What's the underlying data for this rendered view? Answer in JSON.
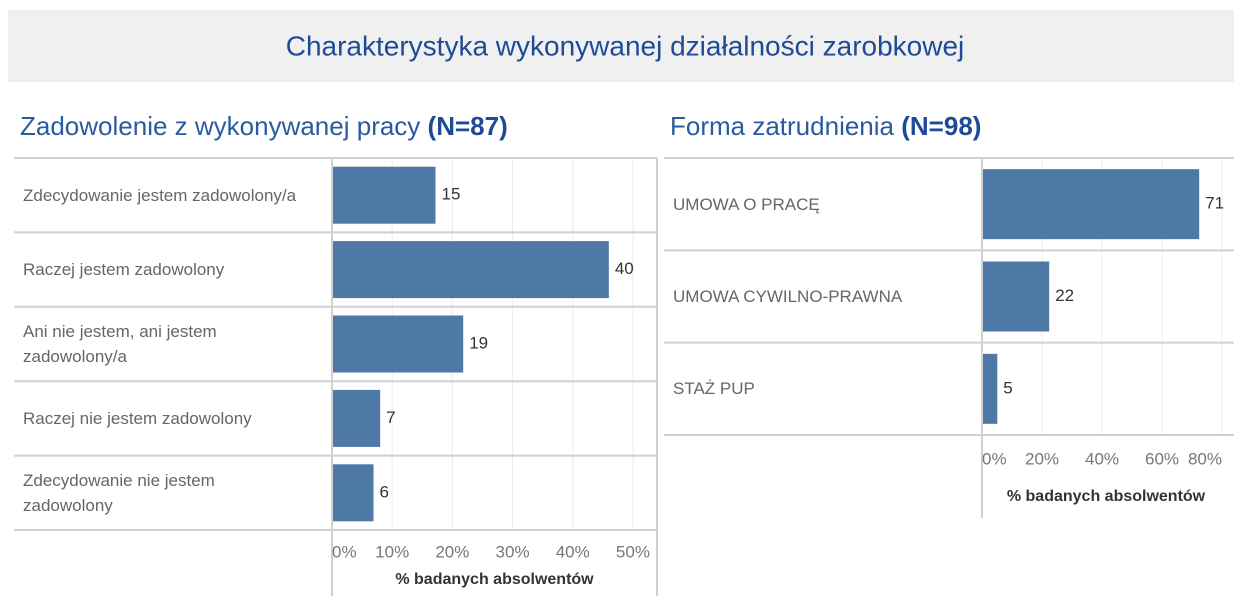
{
  "title": "Charakterystyka wykonywanej działalności zarobkowej",
  "chart_data": [
    {
      "type": "bar",
      "orientation": "horizontal",
      "title": "Zadowolenie z wykonywanej pracy",
      "subtitle": "(N=87)",
      "categories": [
        "Zdecydowanie jestem zadowolony/a",
        "Raczej jestem zadowolony",
        "Ani nie jestem, ani jestem zadowolony/a",
        "Raczej nie jestem zadowolony",
        "Zdecydowanie nie jestem zadowolony"
      ],
      "values": [
        17.2,
        46.0,
        21.8,
        8.0,
        6.9
      ],
      "counts": [
        15,
        40,
        19,
        7,
        6
      ],
      "color": "#4e79a7",
      "xlim": [
        0,
        54
      ],
      "xticks": [
        {
          "value": 0,
          "label": "0%"
        },
        {
          "value": 10,
          "label": "10%"
        },
        {
          "value": 20,
          "label": "20%"
        },
        {
          "value": 30,
          "label": "30%"
        },
        {
          "value": 40,
          "label": "40%"
        },
        {
          "value": 50,
          "label": "50%"
        }
      ],
      "x_label": "% badanych absolwentów",
      "grid": true
    },
    {
      "type": "bar",
      "orientation": "horizontal",
      "title": "Forma zatrudnienia",
      "subtitle": "(N=98)",
      "categories": [
        "UMOWA O PRACĘ",
        "UMOWA CYWILNO-PRAWNA",
        "STAŻ PUP"
      ],
      "values": [
        72.4,
        22.4,
        5.1
      ],
      "counts": [
        71,
        22,
        5
      ],
      "color": "#4e79a7",
      "xlim": [
        0,
        84
      ],
      "xticks": [
        {
          "value": 0,
          "label": "0%"
        },
        {
          "value": 20,
          "label": "20%"
        },
        {
          "value": 40,
          "label": "40%"
        },
        {
          "value": 60,
          "label": "60%"
        },
        {
          "value": 80,
          "label": "80%"
        }
      ],
      "x_label": "% badanych absolwentów",
      "grid": true
    }
  ]
}
